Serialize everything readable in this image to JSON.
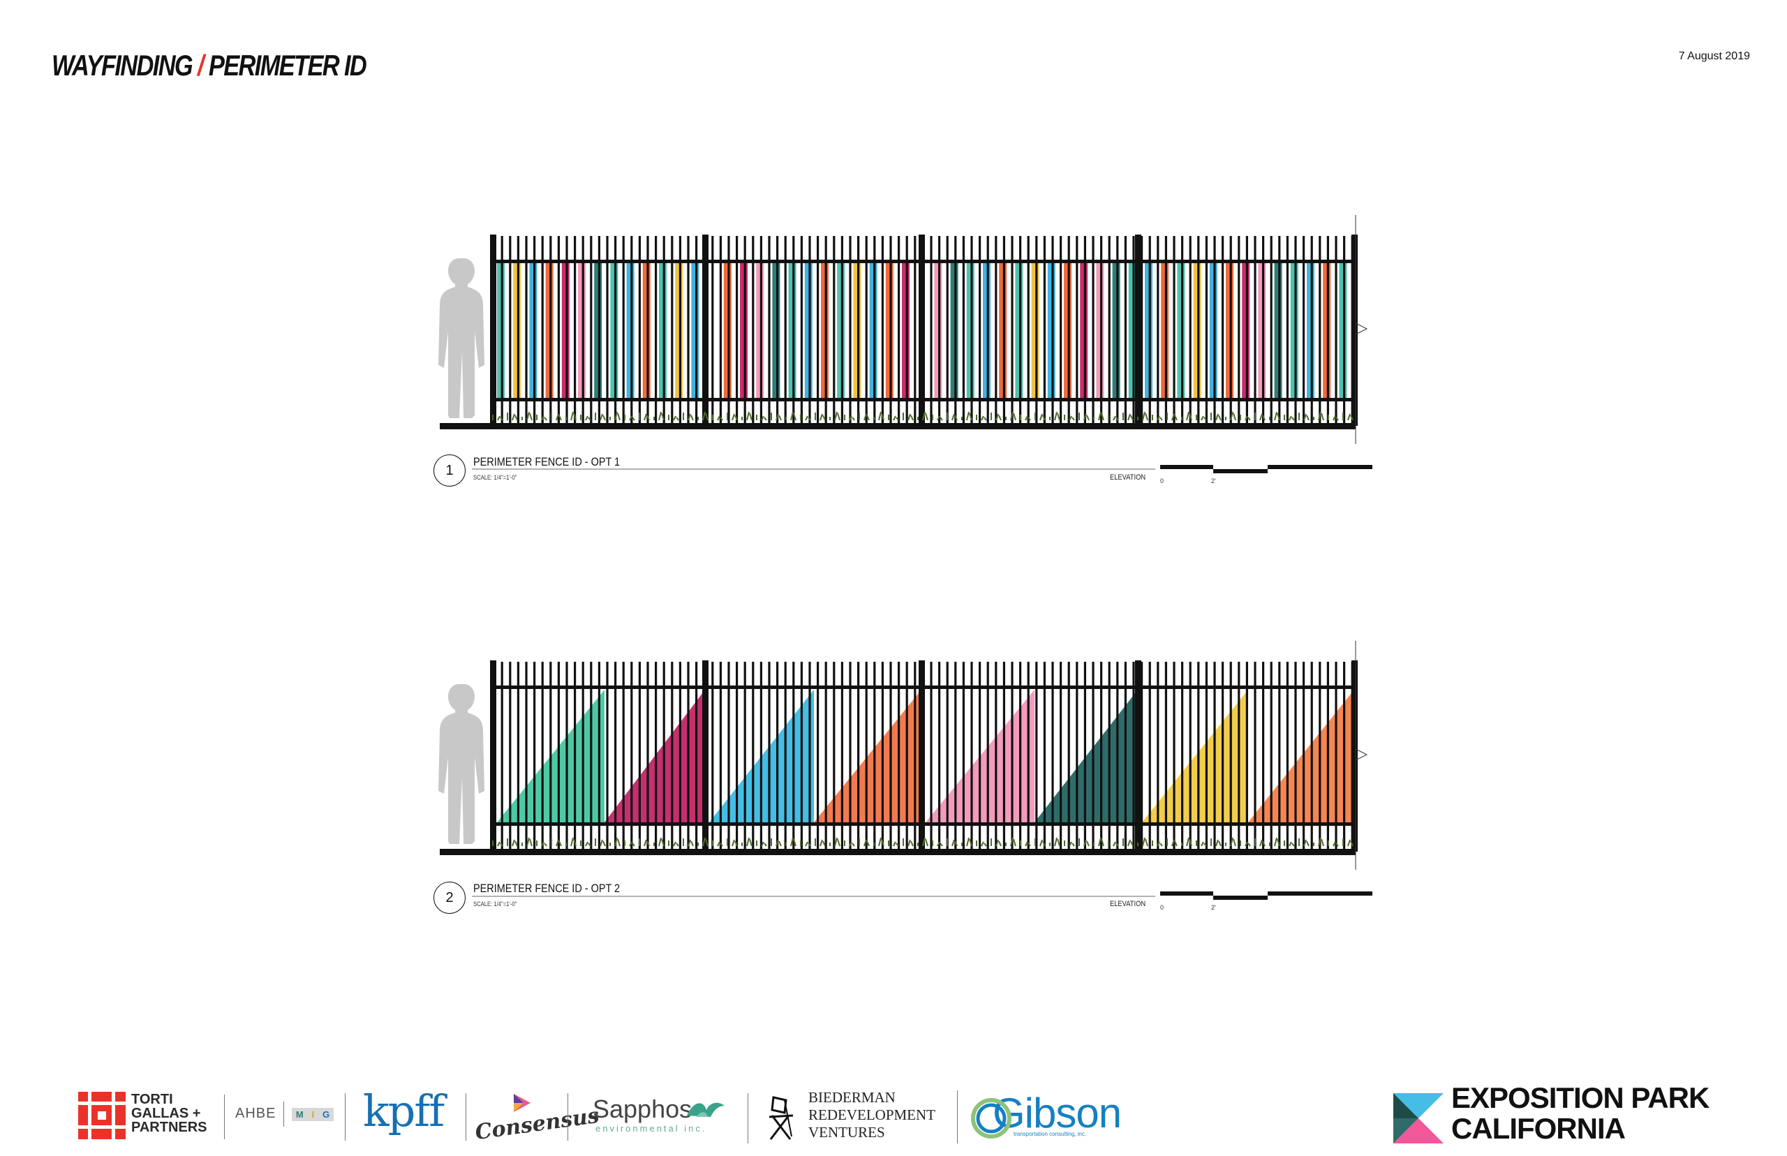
{
  "header": {
    "title_part1": "WAYFINDING",
    "title_separator": "/",
    "title_part2": "PERIMETER ID",
    "date": "7 August 2019"
  },
  "drawings": [
    {
      "number": "1",
      "title": "PERIMETER FENCE ID - OPT 1",
      "scale": "SCALE: 1/4\"=1'-0\"",
      "view": "ELEVATION",
      "scale_bar_start": "0",
      "scale_bar_mark": "2'"
    },
    {
      "number": "2",
      "title": "PERIMETER FENCE ID - OPT 2",
      "scale": "SCALE: 1/4\"=1'-0\"",
      "view": "ELEVATION",
      "scale_bar_start": "0",
      "scale_bar_mark": "2'"
    }
  ],
  "palette": {
    "opt1_stripes": [
      "#4cc3b0",
      "#f2c43a",
      "#3fb4df",
      "#f06a3a",
      "#c72f6b",
      "#f59ab9",
      "#2f7d78",
      "#4cc3b0",
      "#3fb4df",
      "#f06a3a"
    ],
    "opt2_triangles": [
      "#4ccaa6",
      "#c4306d",
      "#45bde4",
      "#f27a4f",
      "#f49bbd",
      "#2f6c69",
      "#f2cd4a",
      "#f58652"
    ],
    "fence": "#111111",
    "figure": "#c8c8c8",
    "brand_red": "#e8332a"
  },
  "footer_logos": {
    "torti_gallas": [
      "TORTI",
      "GALLAS +",
      "PARTNERS"
    ],
    "ahbe": "AHBE",
    "mig": [
      "M",
      "I",
      "G"
    ],
    "kpff": "kpff",
    "consensus": "Consensus",
    "sapphos": "Sapphos",
    "sapphos_sub": "environmental inc.",
    "biederman": [
      "BIEDERMAN",
      "REDEVELOPMENT",
      "VENTURES"
    ],
    "gibson": "Gibson",
    "gibson_sub": "transportation consulting, inc.",
    "exposition_park": [
      "EXPOSITION PARK",
      "CALIFORNIA"
    ]
  }
}
